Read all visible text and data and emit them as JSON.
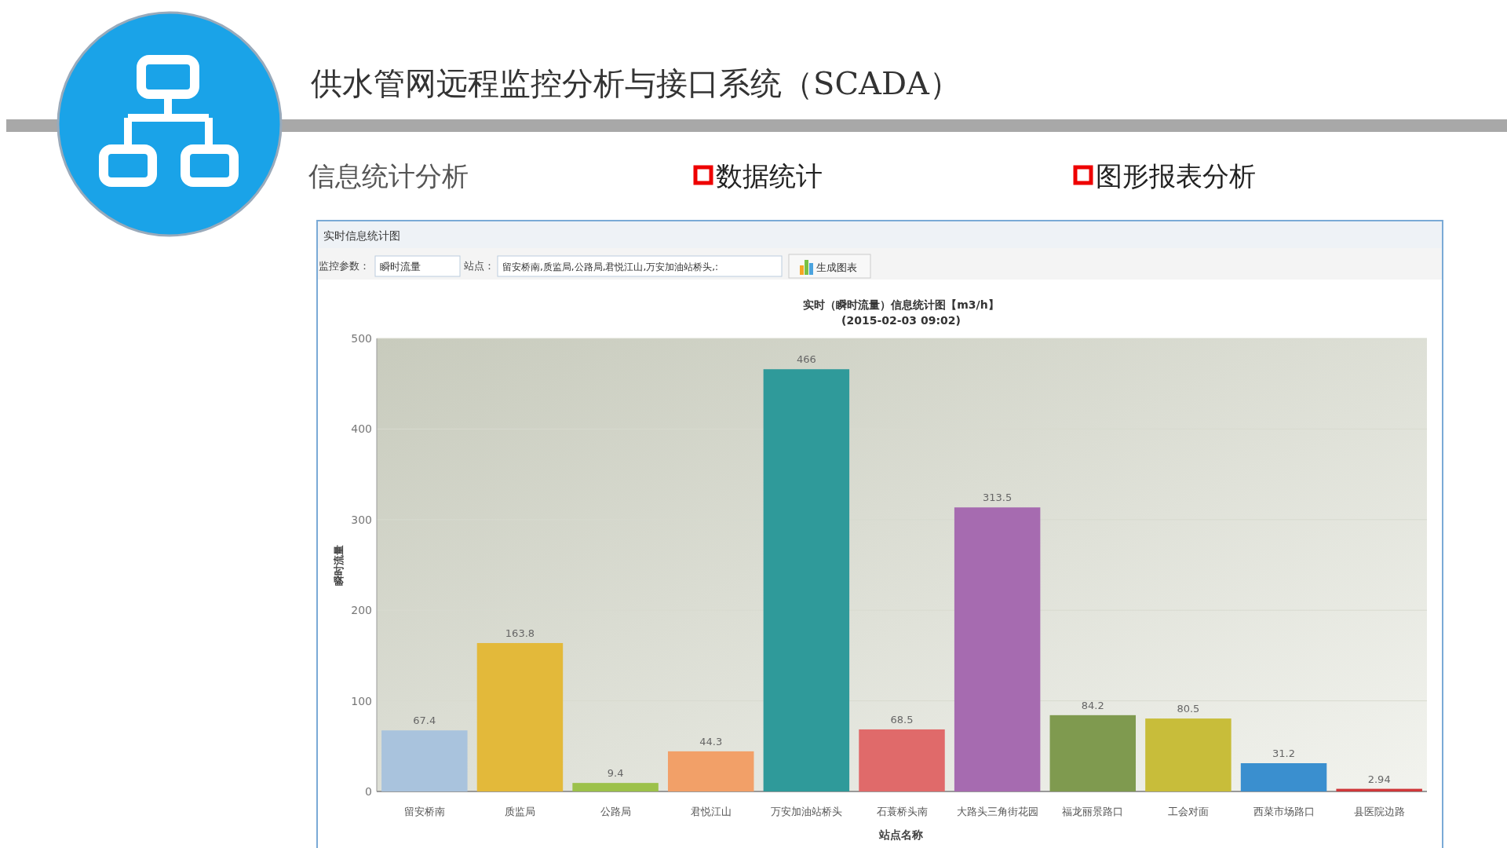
{
  "chart_data": {
    "type": "bar",
    "title": "实时（瞬时流量）信息统计图【m3/h】",
    "subtitle": "(2015-02-03 09:02)",
    "xlabel": "站点名称",
    "ylabel": "瞬时流量",
    "annotations": [
      "供水管网远程监控分析与接口系统（SCADA）",
      "信息统计分析",
      "数据统计",
      "图形报表分析",
      "实时信息统计图",
      "监控参数：",
      "瞬时流量",
      "站点：",
      "留安桥南,质监局,公路局,君悦江山,万安加油站桥头,:",
      "生成图表"
    ],
    "categories": [
      "留安桥南",
      "质监局",
      "公路局",
      "君悦江山",
      "万安加油站桥头",
      "石蓑桥头南",
      "大路头三角街花园",
      "福龙丽景路口",
      "工会对面",
      "西菜市场路口",
      "县医院边路"
    ],
    "values": [
      67.4,
      163.8,
      9.4,
      44.3,
      466,
      68.5,
      313.5,
      84.2,
      80.5,
      31.2,
      2.94
    ],
    "colors": [
      "#a9c3dd",
      "#e3b93a",
      "#9cc14a",
      "#f2a068",
      "#2f9a9a",
      "#e06a6a",
      "#a66bb0",
      "#7f9a4f",
      "#c8bd3a",
      "#3a8fcf",
      "#d0383a"
    ],
    "ylim": [
      0,
      500
    ],
    "yticks": [
      0,
      100,
      200,
      300,
      400,
      500
    ],
    "grid": "y",
    "data_labels": true
  }
}
